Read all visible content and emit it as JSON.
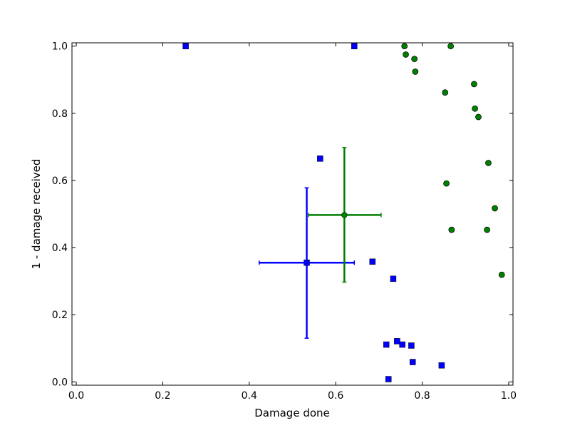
{
  "chart_data": {
    "type": "scatter",
    "title": "",
    "xlabel": "Damage done",
    "ylabel": "1 - damage received",
    "xlim": [
      -0.01,
      1.01
    ],
    "ylim": [
      -0.01,
      1.01
    ],
    "xticks": [
      0.0,
      0.2,
      0.4,
      0.6,
      0.8,
      1.0
    ],
    "yticks": [
      0.0,
      0.2,
      0.4,
      0.6,
      0.8,
      1.0
    ],
    "xtick_labels": [
      "0.0",
      "0.2",
      "0.4",
      "0.6",
      "0.8",
      "1.0"
    ],
    "ytick_labels": [
      "0.0",
      "0.2",
      "0.4",
      "0.6",
      "0.8",
      "1.0"
    ],
    "grid": false,
    "legend": "none",
    "series": [
      {
        "marker": "square",
        "color": "#0000ff",
        "points": [
          [
            0.253,
            1.0
          ],
          [
            0.643,
            1.0
          ],
          [
            0.564,
            0.665
          ],
          [
            0.685,
            0.358
          ],
          [
            0.733,
            0.307
          ],
          [
            0.742,
            0.121
          ],
          [
            0.717,
            0.111
          ],
          [
            0.754,
            0.111
          ],
          [
            0.775,
            0.108
          ],
          [
            0.778,
            0.059
          ],
          [
            0.845,
            0.049
          ],
          [
            0.722,
            0.008
          ]
        ],
        "errorbar": {
          "x": 0.533,
          "y": 0.355,
          "xerr": [
            0.423,
            0.643
          ],
          "yerr": [
            0.13,
            0.578
          ]
        }
      },
      {
        "marker": "circle",
        "color": "#008000",
        "points": [
          [
            0.759,
            1.0
          ],
          [
            0.866,
            1.0
          ],
          [
            0.762,
            0.975
          ],
          [
            0.782,
            0.962
          ],
          [
            0.784,
            0.924
          ],
          [
            0.853,
            0.862
          ],
          [
            0.92,
            0.887
          ],
          [
            0.922,
            0.814
          ],
          [
            0.93,
            0.789
          ],
          [
            0.953,
            0.652
          ],
          [
            0.856,
            0.591
          ],
          [
            0.968,
            0.517
          ],
          [
            0.868,
            0.453
          ],
          [
            0.95,
            0.453
          ],
          [
            0.984,
            0.319
          ]
        ],
        "errorbar": {
          "x": 0.62,
          "y": 0.497,
          "xerr": [
            0.537,
            0.705
          ],
          "yerr": [
            0.297,
            0.698
          ]
        }
      }
    ]
  }
}
